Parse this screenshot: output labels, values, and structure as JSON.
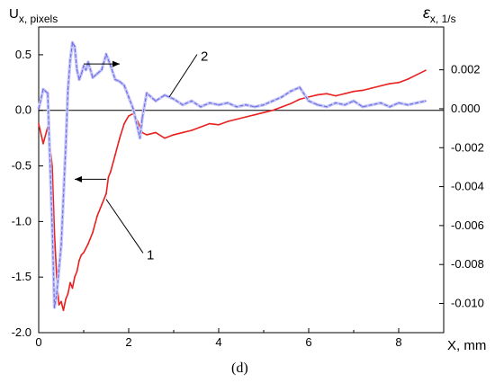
{
  "chart_data": {
    "type": "line",
    "panel_label": "(d)",
    "xlabel": "X, mm",
    "xlim": [
      0,
      9
    ],
    "x_ticks": [
      0,
      2,
      4,
      6,
      8
    ],
    "left_axis": {
      "label_main": "U",
      "label_sub": "x",
      "label_rest": ", pixels",
      "ylim": [
        -2.0,
        0.75
      ],
      "ticks": [
        "-2.0",
        "-1.5",
        "-1.0",
        "-0.5",
        "0.0",
        "0.5"
      ]
    },
    "right_axis": {
      "label_main": "ε",
      "label_sub": "x",
      "label_rest": ", 1/s",
      "ylim": [
        -0.0115,
        0.0042
      ],
      "ticks": [
        "-0.010",
        "-0.008",
        "-0.006",
        "-0.004",
        "-0.002",
        "0.000",
        "0.002"
      ]
    },
    "zero_line": 0.0,
    "series": [
      {
        "name": "1",
        "axis": "left",
        "color": "#e8201f",
        "x": [
          0.0,
          0.1,
          0.2,
          0.3,
          0.35,
          0.4,
          0.45,
          0.5,
          0.55,
          0.6,
          0.65,
          0.7,
          0.75,
          0.8,
          0.85,
          0.9,
          0.95,
          1.0,
          1.1,
          1.2,
          1.3,
          1.4,
          1.5,
          1.55,
          1.6,
          1.7,
          1.8,
          1.9,
          2.0,
          2.1,
          2.2,
          2.3,
          2.4,
          2.6,
          2.8,
          3.0,
          3.2,
          3.4,
          3.6,
          3.8,
          4.0,
          4.2,
          4.4,
          4.6,
          4.8,
          5.0,
          5.2,
          5.4,
          5.6,
          5.8,
          6.0,
          6.2,
          6.4,
          6.6,
          6.8,
          7.0,
          7.2,
          7.4,
          7.6,
          7.8,
          8.0,
          8.2,
          8.4,
          8.6
        ],
        "y": [
          -0.12,
          -0.3,
          -0.15,
          -0.5,
          -1.1,
          -1.5,
          -1.75,
          -1.72,
          -1.8,
          -1.7,
          -1.65,
          -1.55,
          -1.6,
          -1.5,
          -1.45,
          -1.35,
          -1.3,
          -1.28,
          -1.2,
          -1.1,
          -0.95,
          -0.85,
          -0.75,
          -0.6,
          -0.55,
          -0.4,
          -0.25,
          -0.12,
          -0.05,
          -0.03,
          -0.1,
          -0.2,
          -0.22,
          -0.2,
          -0.25,
          -0.22,
          -0.2,
          -0.18,
          -0.15,
          -0.12,
          -0.13,
          -0.1,
          -0.08,
          -0.06,
          -0.04,
          -0.02,
          0.0,
          0.03,
          0.06,
          0.1,
          0.12,
          0.14,
          0.15,
          0.13,
          0.15,
          0.17,
          0.18,
          0.2,
          0.22,
          0.24,
          0.25,
          0.28,
          0.32,
          0.36
        ]
      },
      {
        "name": "2",
        "axis": "right",
        "color": "#6f6fe8",
        "x": [
          0.0,
          0.1,
          0.2,
          0.3,
          0.35,
          0.4,
          0.5,
          0.6,
          0.65,
          0.7,
          0.75,
          0.8,
          0.85,
          0.9,
          0.95,
          1.0,
          1.05,
          1.1,
          1.2,
          1.3,
          1.4,
          1.5,
          1.55,
          1.6,
          1.7,
          1.8,
          1.9,
          2.0,
          2.1,
          2.2,
          2.25,
          2.3,
          2.4,
          2.6,
          2.8,
          3.0,
          3.2,
          3.4,
          3.6,
          3.8,
          4.0,
          4.2,
          4.4,
          4.6,
          4.8,
          5.0,
          5.2,
          5.4,
          5.6,
          5.8,
          6.0,
          6.2,
          6.4,
          6.6,
          6.8,
          7.0,
          7.2,
          7.4,
          7.6,
          7.8,
          8.0,
          8.2,
          8.4,
          8.6
        ],
        "y": [
          0.0,
          0.001,
          0.0008,
          -0.006,
          -0.0102,
          -0.0095,
          -0.007,
          -0.002,
          0.001,
          0.0025,
          0.0034,
          0.0032,
          0.002,
          0.0015,
          0.0018,
          0.0022,
          0.002,
          0.0024,
          0.0016,
          0.0018,
          0.002,
          0.0028,
          0.0025,
          0.0022,
          0.0015,
          0.0014,
          0.0012,
          0.0006,
          0.0,
          -0.001,
          -0.0015,
          -0.0005,
          0.0008,
          0.0004,
          0.0007,
          0.0005,
          0.0002,
          0.0004,
          0.0001,
          0.0003,
          0.0002,
          0.0003,
          0.0001,
          0.0002,
          0.0001,
          0.0002,
          0.0004,
          0.0006,
          0.0009,
          0.0011,
          0.0004,
          0.0002,
          0.0001,
          0.0003,
          0.0002,
          0.0004,
          0.0001,
          0.0002,
          0.0003,
          0.0001,
          0.0003,
          0.0002,
          0.0003,
          0.0004
        ]
      }
    ],
    "annotations": [
      {
        "text": "1",
        "series": "1",
        "at_x": 1.5,
        "at_y": -0.8,
        "text_x": 2.4,
        "text_y": -1.3,
        "axis": "left"
      },
      {
        "text": "2",
        "series": "2",
        "at_x": 2.9,
        "at_y": 0.0006,
        "text_x": 3.6,
        "text_y": 0.0027,
        "axis": "right"
      }
    ],
    "arrows": [
      {
        "direction": "left",
        "axis": "left",
        "x1": 1.5,
        "x2": 0.8,
        "y": -0.62
      },
      {
        "direction": "right",
        "axis": "right",
        "x1": 1.0,
        "x2": 1.8,
        "y": 0.0023
      }
    ]
  }
}
